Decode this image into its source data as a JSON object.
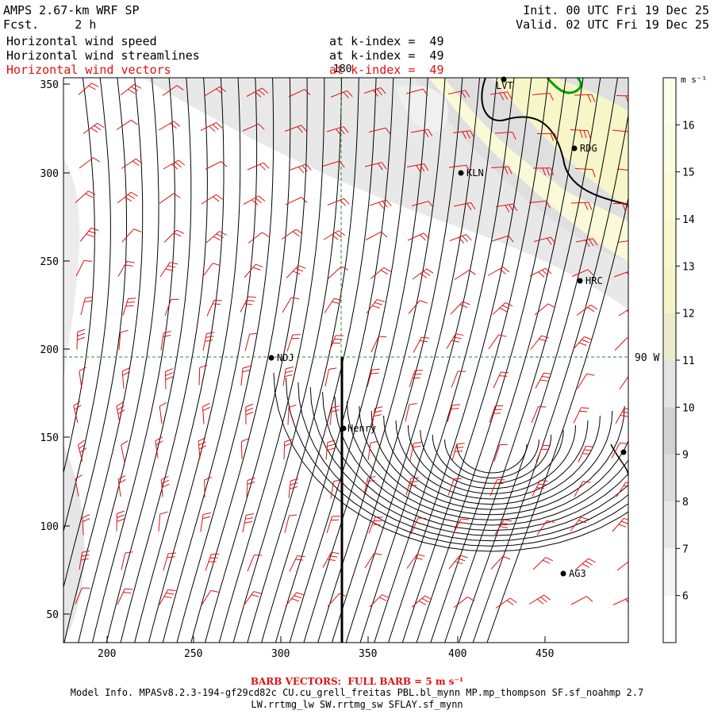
{
  "header": {
    "title": "AMPS 2.67-km WRF SP",
    "forecast": "Fcst.     2 h",
    "init": "Init. 00 UTC Fri 19 Dec 25",
    "valid": "Valid. 02 UTC Fri 19 Dec 25",
    "fields": [
      {
        "name": "Horizontal wind speed",
        "level": "at k-index =  49",
        "color": "#000000"
      },
      {
        "name": "Horizontal wind streamlines",
        "level": "at k-index =  49",
        "color": "#000000"
      },
      {
        "name": "Horizontal wind vectors",
        "level": "at k-index =  49",
        "color": "#e01010"
      }
    ]
  },
  "map": {
    "x_ticks": [
      "200",
      "250",
      "300",
      "350",
      "400",
      "450"
    ],
    "y_ticks": [
      "50",
      "100",
      "150",
      "200",
      "250",
      "300",
      "350"
    ],
    "grid_top_label": "180",
    "grid_right_label": "90 W",
    "stations": [
      "LVT",
      "RDG",
      "KLN",
      "HRC",
      "NDJ",
      "Henry",
      "AG3"
    ]
  },
  "colorbar": {
    "unit": "m s⁻¹",
    "labels": [
      "6",
      "7",
      "8",
      "9",
      "10",
      "11",
      "12",
      "13",
      "14",
      "15",
      "16"
    ]
  },
  "footer": {
    "barb_title": "BARB VECTORS:  FULL BARB = 5 m s⁻¹",
    "model_info": "Model Info. MPASv8.2.3-194-gf29cd82c CU.cu_grell_freitas PBL.bl_mynn MP.mp_thompson SF.sf_noahmp 2.7",
    "model_info2": "LW.rrtmg_lw SW.rrtmg_sw SFLAY.sf_mynn"
  }
}
